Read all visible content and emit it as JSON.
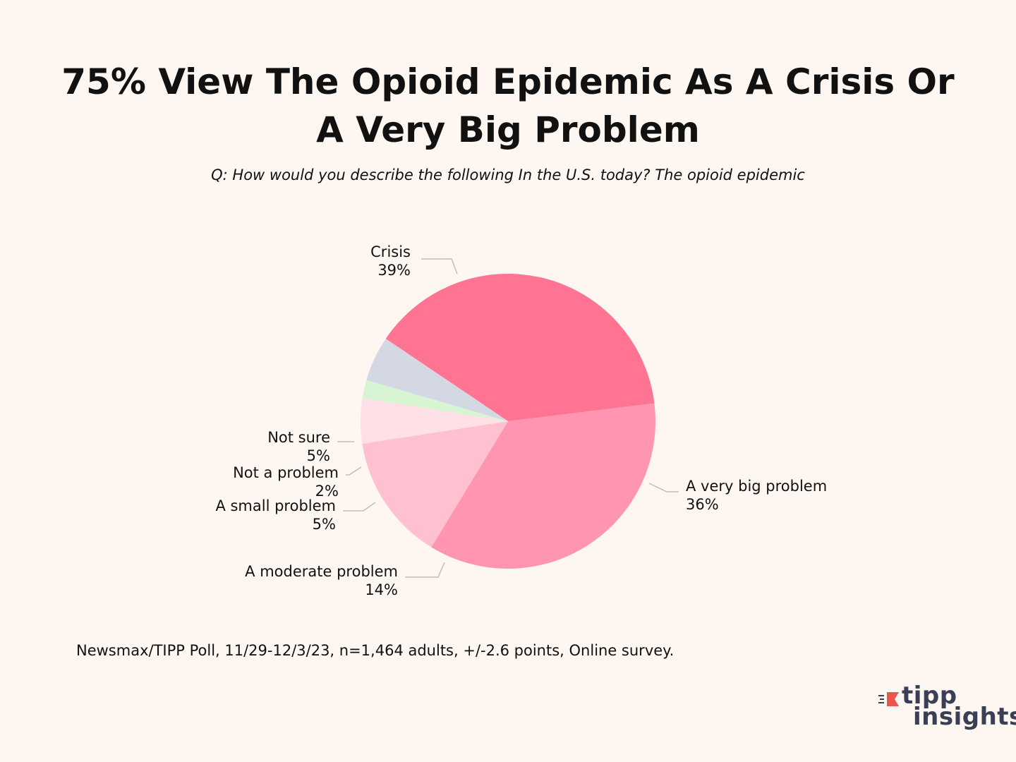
{
  "chart_data": {
    "type": "pie",
    "title": "75% View The Opioid Epidemic As A Crisis Or A Very Big Problem",
    "subtitle": "Q: How would you describe the following In the U.S. today? The opioid epidemic",
    "slices": [
      {
        "label": "Crisis",
        "value": 39,
        "display": "39%",
        "color": "#ff7393"
      },
      {
        "label": "A very big problem",
        "value": 36,
        "display": "36%",
        "color": "#ff95b0"
      },
      {
        "label": "A moderate problem",
        "value": 14,
        "display": "14%",
        "color": "#ffc1d0"
      },
      {
        "label": "A small problem",
        "value": 5,
        "display": "5%",
        "color": "#ffe0e7"
      },
      {
        "label": "Not a problem",
        "value": 2,
        "display": "2%",
        "color": "#d8f5d3"
      },
      {
        "label": "Not sure",
        "value": 5,
        "display": "5%",
        "color": "#d4d8e3"
      }
    ]
  },
  "footer": {
    "source": "Newsmax/TIPP Poll, 11/29-12/3/23, n=1,464 adults, +/-2.6 points, Online survey."
  },
  "logo": {
    "word1": "tipp",
    "word2": "insights",
    "accent_color": "#e8574b",
    "text_color": "#3b3f55"
  }
}
